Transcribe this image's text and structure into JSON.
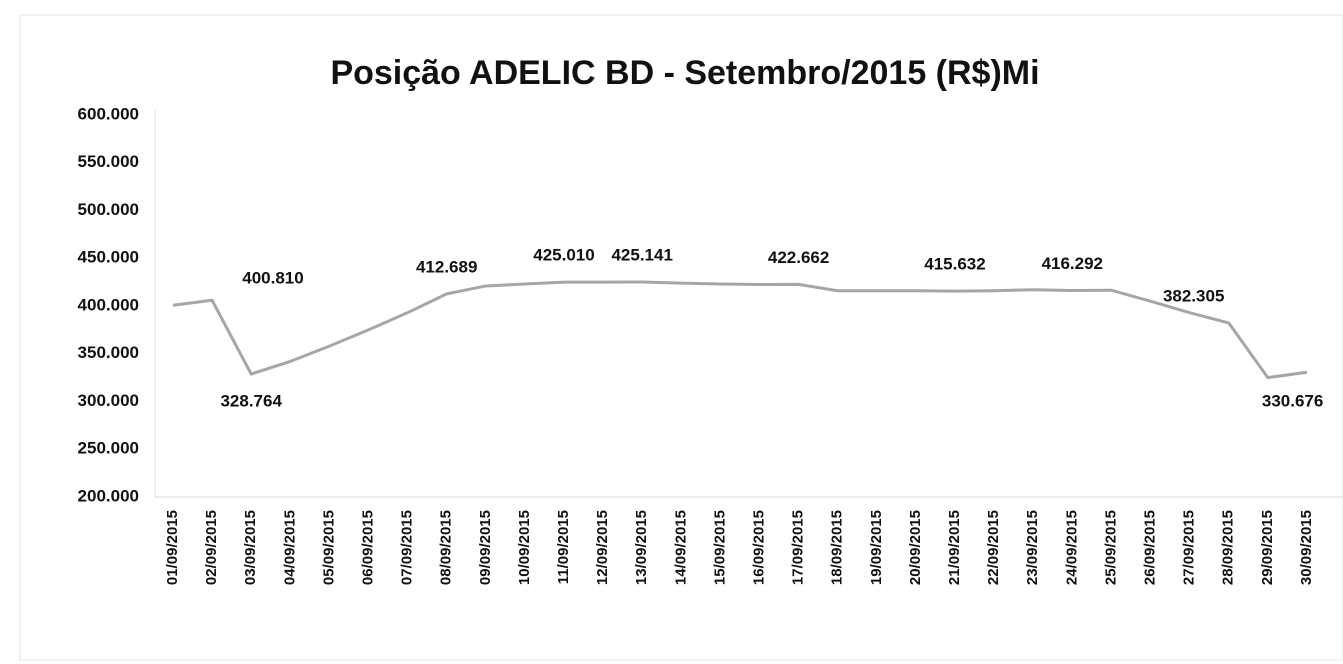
{
  "chart_data": {
    "type": "line",
    "title": "Posição ADELIC BD - Setembro/2015 (R$)Mi",
    "categories": [
      "01/09/2015",
      "02/09/2015",
      "03/09/2015",
      "04/09/2015",
      "05/09/2015",
      "06/09/2015",
      "07/09/2015",
      "08/09/2015",
      "09/09/2015",
      "10/09/2015",
      "11/09/2015",
      "12/09/2015",
      "13/09/2015",
      "14/09/2015",
      "15/09/2015",
      "16/09/2015",
      "17/09/2015",
      "18/09/2015",
      "19/09/2015",
      "20/09/2015",
      "21/09/2015",
      "22/09/2015",
      "23/09/2015",
      "24/09/2015",
      "25/09/2015",
      "26/09/2015",
      "27/09/2015",
      "28/09/2015",
      "29/09/2015",
      "30/09/2015"
    ],
    "values": [
      400810,
      406000,
      328764,
      342000,
      358000,
      375000,
      393000,
      412689,
      421000,
      423000,
      425010,
      425000,
      425141,
      424000,
      423000,
      422500,
      422662,
      416000,
      416000,
      416000,
      415632,
      416000,
      417000,
      416292,
      416500,
      405000,
      393000,
      382305,
      325000,
      330676
    ],
    "value_labels": [
      "400.810",
      null,
      "328.764",
      null,
      null,
      null,
      null,
      "412.689",
      null,
      null,
      "425.010",
      null,
      "425.141",
      null,
      null,
      null,
      "422.662",
      null,
      null,
      null,
      "415.632",
      null,
      null,
      "416.292",
      null,
      null,
      null,
      "382.305",
      null,
      "330.676"
    ],
    "color": "#a6a6a6",
    "ylim": [
      200000,
      600000
    ],
    "yticks": [
      {
        "value": 200000,
        "label": "200.000"
      },
      {
        "value": 250000,
        "label": "250.000"
      },
      {
        "value": 300000,
        "label": "300.000"
      },
      {
        "value": 350000,
        "label": "350.000"
      },
      {
        "value": 400000,
        "label": "400.000"
      },
      {
        "value": 450000,
        "label": "450.000"
      },
      {
        "value": 500000,
        "label": "500.000"
      },
      {
        "value": 550000,
        "label": "550.000"
      },
      {
        "value": 600000,
        "label": "600.000"
      }
    ],
    "grid": false
  }
}
